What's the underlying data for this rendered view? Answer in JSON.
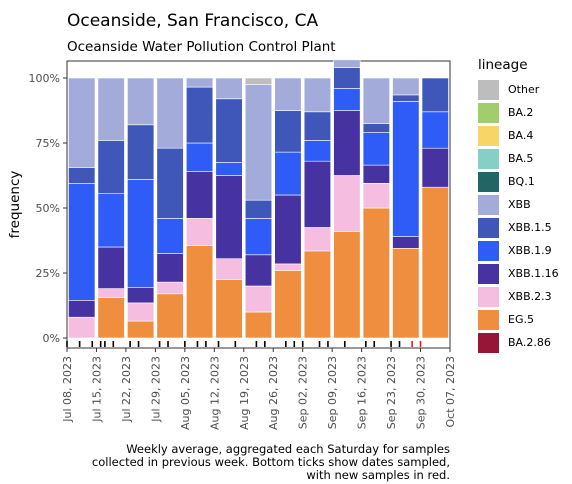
{
  "chart_data": {
    "type": "bar",
    "stacked": true,
    "title": "Oceanside, San Francisco, CA",
    "subtitle": "Oceanside Water Pollution Control Plant",
    "xlabel": "",
    "ylabel": "frequency",
    "ylim": [
      0,
      1
    ],
    "y_ticks": [
      0,
      0.25,
      0.5,
      0.75,
      1.0
    ],
    "y_tick_labels": [
      "0%",
      "25%",
      "50%",
      "75%",
      "100%"
    ],
    "x_tick_labels": [
      "Jul 08, 2023",
      "Jul 15, 2023",
      "Jul 22, 2023",
      "Jul 29, 2023",
      "Aug 05, 2023",
      "Aug 12, 2023",
      "Aug 19, 2023",
      "Aug 26, 2023",
      "Sep 02, 2023",
      "Sep 09, 2023",
      "Sep 16, 2023",
      "Sep 23, 2023",
      "Sep 30, 2023",
      "Oct 07, 2023"
    ],
    "categories": [
      "Jul 08, 2023",
      "Jul 15, 2023",
      "Jul 22, 2023",
      "Jul 29, 2023",
      "Aug 05, 2023",
      "Aug 12, 2023",
      "Aug 19, 2023",
      "Aug 26, 2023",
      "Sep 02, 2023",
      "Sep 09, 2023",
      "Sep 16, 2023",
      "Sep 23, 2023",
      "Sep 30, 2023"
    ],
    "legend_title": "lineage",
    "legend_position": "right",
    "grid": false,
    "series": [
      {
        "name": "EG.5",
        "color": "#ee8e3e",
        "values": [
          0,
          0.155,
          0.065,
          0.17,
          0.355,
          0.225,
          0.1,
          0.26,
          0.335,
          0.41,
          0.5,
          0.345,
          0.58
        ]
      },
      {
        "name": "XBB.2.3",
        "color": "#f5bde0",
        "values": [
          0.08,
          0.035,
          0.07,
          0.045,
          0.105,
          0.08,
          0.1,
          0.025,
          0.09,
          0.215,
          0.095,
          0,
          0
        ]
      },
      {
        "name": "XBB.1.16",
        "color": "#4632a0",
        "values": [
          0.065,
          0.16,
          0.06,
          0.11,
          0.18,
          0.32,
          0.12,
          0.265,
          0.255,
          0.25,
          0.07,
          0.045,
          0.15
        ]
      },
      {
        "name": "XBB.1.9",
        "color": "#2f5cf6",
        "values": [
          0.45,
          0.205,
          0.415,
          0.135,
          0.11,
          0.05,
          0.14,
          0.165,
          0.08,
          0.085,
          0.125,
          0.52,
          0.14
        ]
      },
      {
        "name": "XBB.1.5",
        "color": "#3e57b8",
        "values": [
          0.06,
          0.205,
          0.21,
          0.27,
          0.215,
          0.245,
          0.07,
          0.16,
          0.11,
          0.08,
          0.035,
          0.025,
          0.13
        ]
      },
      {
        "name": "XBB",
        "color": "#a3abdb",
        "values": [
          0.345,
          0.24,
          0.18,
          0.27,
          0.035,
          0.08,
          0.445,
          0.125,
          0.13,
          0.03,
          0.175,
          0.065,
          0
        ]
      },
      {
        "name": "Other",
        "color": "#bdbdbd",
        "values": [
          0,
          0,
          0,
          0,
          0,
          0,
          0.025,
          0,
          0,
          0,
          0,
          0,
          0
        ]
      }
    ],
    "legend_entries": [
      {
        "name": "Other",
        "color": "#bdbdbd"
      },
      {
        "name": "BA.2",
        "color": "#a3cc6e"
      },
      {
        "name": "BA.4",
        "color": "#f8d567"
      },
      {
        "name": "BA.5",
        "color": "#86cfc6"
      },
      {
        "name": "BQ.1",
        "color": "#236464"
      },
      {
        "name": "XBB",
        "color": "#a3abdb"
      },
      {
        "name": "XBB.1.5",
        "color": "#3e57b8"
      },
      {
        "name": "XBB.1.9",
        "color": "#2f5cf6"
      },
      {
        "name": "XBB.1.16",
        "color": "#4632a0"
      },
      {
        "name": "XBB.2.3",
        "color": "#f5bde0"
      },
      {
        "name": "EG.5",
        "color": "#ee8e3e"
      },
      {
        "name": "BA.2.86",
        "color": "#961638"
      }
    ],
    "sample_dates": [
      {
        "date": "Jul 08, 2023",
        "new": false
      },
      {
        "date": "Jul 11, 2023",
        "new": false
      },
      {
        "date": "Jul 14, 2023",
        "new": false
      },
      {
        "date": "Jul 16, 2023",
        "new": false
      },
      {
        "date": "Jul 17, 2023",
        "new": false
      },
      {
        "date": "Jul 19, 2023",
        "new": false
      },
      {
        "date": "Jul 23, 2023",
        "new": false
      },
      {
        "date": "Jul 25, 2023",
        "new": false
      },
      {
        "date": "Jul 30, 2023",
        "new": false
      },
      {
        "date": "Aug 01, 2023",
        "new": false
      },
      {
        "date": "Aug 05, 2023",
        "new": false
      },
      {
        "date": "Aug 08, 2023",
        "new": false
      },
      {
        "date": "Aug 10, 2023",
        "new": false
      },
      {
        "date": "Aug 13, 2023",
        "new": false
      },
      {
        "date": "Aug 17, 2023",
        "new": false
      },
      {
        "date": "Aug 22, 2023",
        "new": false
      },
      {
        "date": "Aug 24, 2023",
        "new": false
      },
      {
        "date": "Aug 29, 2023",
        "new": false
      },
      {
        "date": "Aug 31, 2023",
        "new": false
      },
      {
        "date": "Sep 02, 2023",
        "new": false
      },
      {
        "date": "Sep 06, 2023",
        "new": false
      },
      {
        "date": "Sep 08, 2023",
        "new": false
      },
      {
        "date": "Sep 12, 2023",
        "new": false
      },
      {
        "date": "Sep 17, 2023",
        "new": false
      },
      {
        "date": "Sep 19, 2023",
        "new": false
      },
      {
        "date": "Sep 23, 2023",
        "new": false
      },
      {
        "date": "Sep 25, 2023",
        "new": false
      },
      {
        "date": "Sep 28, 2023",
        "new": true
      },
      {
        "date": "Sep 30, 2023",
        "new": true
      }
    ],
    "caption": [
      "Weekly average, aggregated each Saturday for samples",
      "collected in previous week. Bottom ticks show dates sampled,",
      "with new samples in red."
    ]
  }
}
